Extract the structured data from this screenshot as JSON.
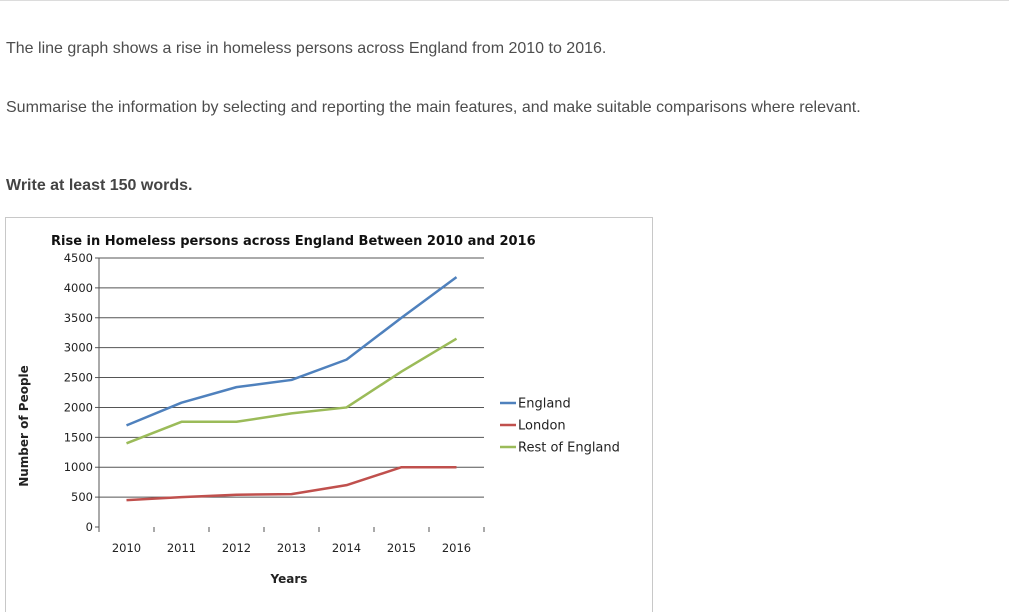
{
  "prompt": {
    "line1": "The line graph shows a rise in homeless persons across England from 2010 to 2016.",
    "line2": "Summarise the information by selecting and reporting the main features, and make suitable comparisons where relevant.",
    "line3": "Write at least 150 words."
  },
  "colors": {
    "England": "#4f81bd",
    "London": "#c0504d",
    "Rest of England": "#9bbb59"
  },
  "chart_data": {
    "type": "line",
    "title": "Rise in Homeless persons across England Between 2010 and 2016",
    "xlabel": "Years",
    "ylabel": "Number of People",
    "x": [
      "2010",
      "2011",
      "2012",
      "2013",
      "2014",
      "2015",
      "2016"
    ],
    "ylim": [
      0,
      4500
    ],
    "yticks": [
      0,
      500,
      1000,
      1500,
      2000,
      2500,
      3000,
      3500,
      4000,
      4500
    ],
    "grid": true,
    "legend": "right",
    "series": [
      {
        "name": "England",
        "values": [
          1700,
          2080,
          2340,
          2460,
          2800,
          3500,
          4180
        ]
      },
      {
        "name": "London",
        "values": [
          450,
          500,
          540,
          550,
          700,
          1000,
          1000
        ]
      },
      {
        "name": "Rest of England",
        "values": [
          1400,
          1760,
          1760,
          1900,
          2000,
          2600,
          3150
        ]
      }
    ]
  }
}
